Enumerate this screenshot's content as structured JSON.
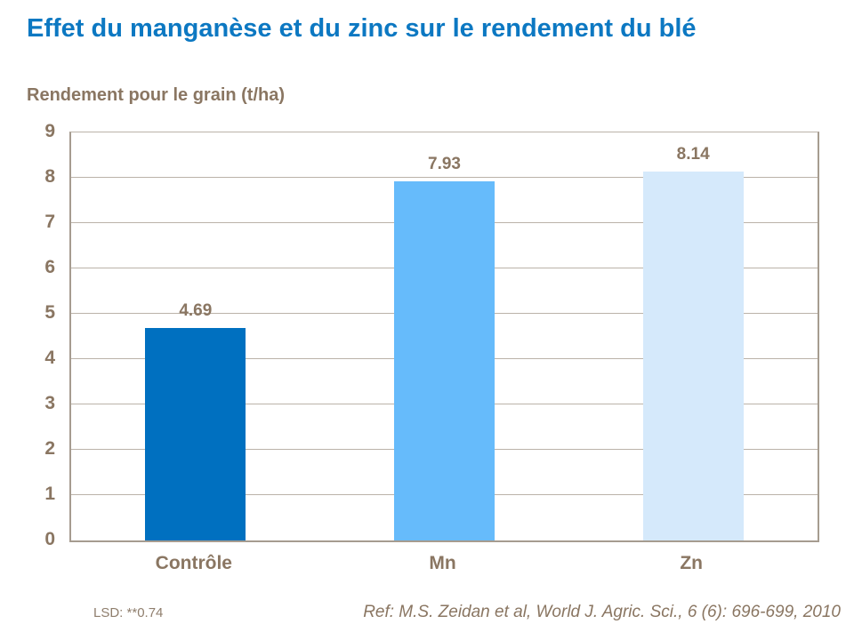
{
  "page": {
    "title": "Effet du manganèse et du zinc sur le rendement du blé",
    "footnote_lsd": "LSD: **0.74",
    "reference": "Ref: M.S. Zeidan et al, World J. Agric. Sci., 6 (6): 696-699, 2010"
  },
  "colors": {
    "title_blue": "#0c78c2",
    "text_brown": "#8a7662",
    "grid_line": "#bab2a8",
    "axis_line": "#a69c90",
    "bar_colors": [
      "#0070c0",
      "#66bbfb",
      "#d5e9fb"
    ]
  },
  "chart_data": {
    "type": "bar",
    "title": "Effet du manganèse et du zinc sur le rendement du blé",
    "ylabel": "Rendement pour le grain (t/ha)",
    "xlabel": "",
    "categories": [
      "Contrôle",
      "Mn",
      "Zn"
    ],
    "values": [
      4.69,
      7.93,
      8.14
    ],
    "value_labels": [
      "4.69",
      "7.93",
      "8.14"
    ],
    "ylim": [
      0,
      9
    ],
    "ytick_interval": 1,
    "ytick_labels": [
      "0",
      "1",
      "2",
      "3",
      "4",
      "5",
      "6",
      "7",
      "8",
      "9"
    ],
    "grid": true,
    "legend": false,
    "annotations": [
      "LSD: **0.74",
      "Ref: M.S. Zeidan et al, World J. Agric. Sci., 6 (6): 696-699, 2010"
    ]
  }
}
